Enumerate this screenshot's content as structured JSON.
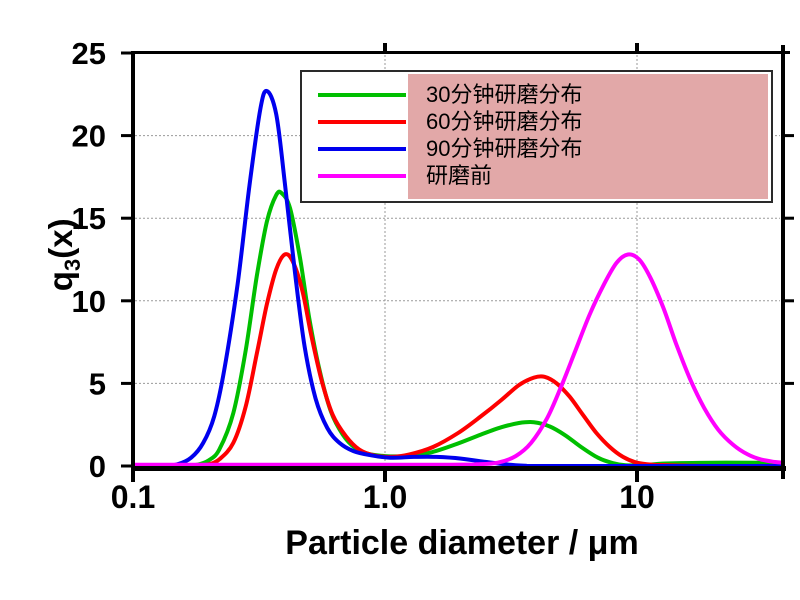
{
  "chart_data": {
    "type": "line",
    "title": "",
    "xlabel": "Particle diameter / μm",
    "ylabel": "q3(x)",
    "ylabel_parts": {
      "base": "q",
      "sub": "3",
      "rest": "(x)"
    },
    "x_scale": "log",
    "x_range": [
      0.1,
      37.6
    ],
    "ylim": [
      0,
      25
    ],
    "x_ticks": [
      {
        "value": 0.1,
        "label": "0.1"
      },
      {
        "value": 1.0,
        "label": "1.0"
      },
      {
        "value": 10,
        "label": "10"
      }
    ],
    "y_ticks": [
      {
        "value": 0,
        "label": "0"
      },
      {
        "value": 5,
        "label": "5"
      },
      {
        "value": 10,
        "label": "10"
      },
      {
        "value": 15,
        "label": "15"
      },
      {
        "value": 20,
        "label": "20"
      },
      {
        "value": 25,
        "label": "25"
      }
    ],
    "grid": {
      "on": true,
      "h_values": [
        5,
        10,
        15,
        20
      ],
      "v_values": [
        1.0,
        10
      ],
      "style": "dotted",
      "color": "#9a9a9a"
    },
    "legend": {
      "position": "top-right",
      "highlight_color": "#e2a8a8",
      "border_color": "#2a2a2a"
    },
    "series": [
      {
        "name": "30分钟研磨分布",
        "color": "#00bf00",
        "peaks": [
          {
            "x_um": 0.38,
            "q3": 16.5
          },
          {
            "x_um": 3.8,
            "q3": 2.65
          }
        ],
        "points": [
          [
            0.16,
            0
          ],
          [
            0.18,
            0.08
          ],
          [
            0.2,
            0.35
          ],
          [
            0.22,
            1.0
          ],
          [
            0.25,
            3.2
          ],
          [
            0.28,
            7.0
          ],
          [
            0.31,
            11.5
          ],
          [
            0.34,
            14.8
          ],
          [
            0.37,
            16.4
          ],
          [
            0.39,
            16.5
          ],
          [
            0.42,
            15.6
          ],
          [
            0.46,
            12.6
          ],
          [
            0.5,
            9.0
          ],
          [
            0.55,
            5.8
          ],
          [
            0.61,
            3.3
          ],
          [
            0.68,
            1.9
          ],
          [
            0.76,
            1.1
          ],
          [
            0.85,
            0.75
          ],
          [
            1.0,
            0.6
          ],
          [
            1.2,
            0.6
          ],
          [
            1.5,
            0.8
          ],
          [
            1.9,
            1.3
          ],
          [
            2.4,
            1.9
          ],
          [
            2.9,
            2.35
          ],
          [
            3.4,
            2.6
          ],
          [
            3.9,
            2.65
          ],
          [
            4.5,
            2.4
          ],
          [
            5.2,
            1.85
          ],
          [
            6.0,
            1.15
          ],
          [
            7.0,
            0.5
          ],
          [
            8.0,
            0.18
          ],
          [
            9.0,
            0.05
          ],
          [
            10.5,
            0.05
          ],
          [
            13,
            0.15
          ],
          [
            20,
            0.2
          ],
          [
            30,
            0.2
          ],
          [
            38,
            0.2
          ]
        ]
      },
      {
        "name": "60分钟研磨分布",
        "color": "#fe0000",
        "peaks": [
          {
            "x_um": 0.4,
            "q3": 12.8
          },
          {
            "x_um": 4.1,
            "q3": 5.4
          }
        ],
        "points": [
          [
            0.18,
            0
          ],
          [
            0.2,
            0.1
          ],
          [
            0.22,
            0.4
          ],
          [
            0.25,
            1.4
          ],
          [
            0.28,
            3.6
          ],
          [
            0.31,
            6.8
          ],
          [
            0.34,
            9.8
          ],
          [
            0.37,
            11.9
          ],
          [
            0.4,
            12.8
          ],
          [
            0.43,
            12.4
          ],
          [
            0.47,
            10.6
          ],
          [
            0.51,
            7.9
          ],
          [
            0.56,
            5.2
          ],
          [
            0.62,
            3.1
          ],
          [
            0.7,
            1.8
          ],
          [
            0.79,
            1.0
          ],
          [
            0.9,
            0.65
          ],
          [
            1.05,
            0.55
          ],
          [
            1.25,
            0.7
          ],
          [
            1.55,
            1.15
          ],
          [
            1.95,
            2.0
          ],
          [
            2.4,
            3.0
          ],
          [
            2.9,
            4.0
          ],
          [
            3.4,
            4.9
          ],
          [
            3.9,
            5.35
          ],
          [
            4.3,
            5.4
          ],
          [
            4.8,
            5.0
          ],
          [
            5.4,
            4.2
          ],
          [
            6.1,
            3.1
          ],
          [
            6.9,
            2.0
          ],
          [
            7.8,
            1.15
          ],
          [
            8.8,
            0.55
          ],
          [
            10,
            0.2
          ],
          [
            11.5,
            0.08
          ],
          [
            13.5,
            0.05
          ],
          [
            16,
            0.02
          ],
          [
            20,
            0
          ],
          [
            38,
            0
          ]
        ]
      },
      {
        "name": "90分钟研磨分布",
        "color": "#0000ee",
        "peaks": [
          {
            "x_um": 0.34,
            "q3": 22.7
          }
        ],
        "points": [
          [
            0.13,
            0
          ],
          [
            0.15,
            0.1
          ],
          [
            0.17,
            0.5
          ],
          [
            0.19,
            1.4
          ],
          [
            0.21,
            3.0
          ],
          [
            0.23,
            5.8
          ],
          [
            0.26,
            11.0
          ],
          [
            0.29,
            17.0
          ],
          [
            0.32,
            21.6
          ],
          [
            0.34,
            22.7
          ],
          [
            0.37,
            21.3
          ],
          [
            0.4,
            17.2
          ],
          [
            0.44,
            11.6
          ],
          [
            0.48,
            7.2
          ],
          [
            0.53,
            4.1
          ],
          [
            0.59,
            2.3
          ],
          [
            0.66,
            1.4
          ],
          [
            0.75,
            0.9
          ],
          [
            0.88,
            0.65
          ],
          [
            1.05,
            0.5
          ],
          [
            1.3,
            0.55
          ],
          [
            1.6,
            0.55
          ],
          [
            2.0,
            0.45
          ],
          [
            2.5,
            0.25
          ],
          [
            3.0,
            0.1
          ],
          [
            3.6,
            0.02
          ],
          [
            4.2,
            0
          ],
          [
            38,
            0
          ]
        ]
      },
      {
        "name": "研磨前",
        "color": "#ff00ff",
        "peaks": [
          {
            "x_um": 9.2,
            "q3": 12.8
          }
        ],
        "points": [
          [
            0.1,
            0.08
          ],
          [
            1.8,
            0.08
          ],
          [
            2.3,
            0.1
          ],
          [
            2.8,
            0.2
          ],
          [
            3.3,
            0.6
          ],
          [
            3.8,
            1.4
          ],
          [
            4.4,
            2.9
          ],
          [
            5.0,
            4.8
          ],
          [
            5.7,
            7.0
          ],
          [
            6.5,
            9.2
          ],
          [
            7.4,
            11.0
          ],
          [
            8.3,
            12.3
          ],
          [
            9.2,
            12.8
          ],
          [
            10.2,
            12.5
          ],
          [
            11.3,
            11.4
          ],
          [
            12.7,
            9.6
          ],
          [
            14.3,
            7.4
          ],
          [
            16.2,
            5.3
          ],
          [
            18.5,
            3.5
          ],
          [
            21,
            2.2
          ],
          [
            24,
            1.3
          ],
          [
            27.5,
            0.7
          ],
          [
            31,
            0.4
          ],
          [
            35,
            0.25
          ],
          [
            38,
            0.2
          ]
        ]
      }
    ]
  }
}
